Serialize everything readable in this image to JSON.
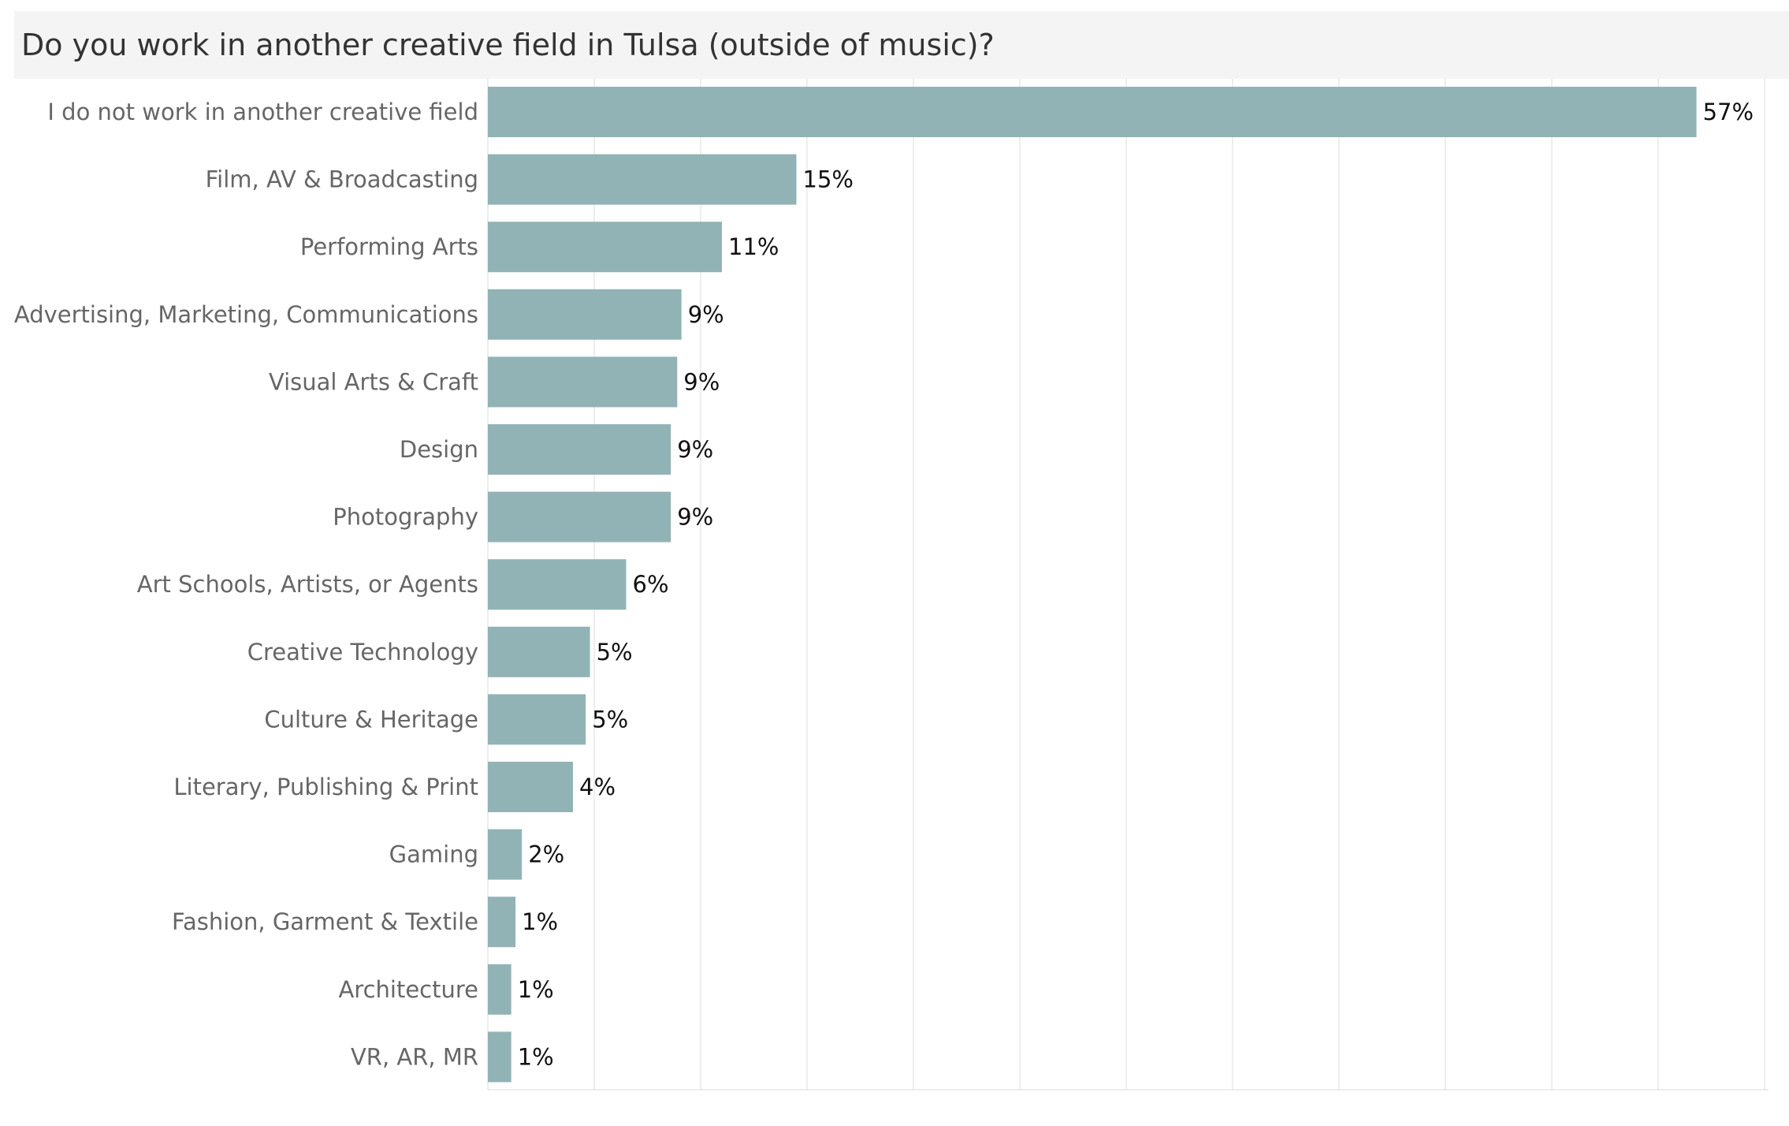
{
  "title": "Do you work in another creative field in Tulsa (outside of music)?",
  "colors": {
    "bar": "#92b3b6",
    "grid": "#e8e8e8",
    "title_bg": "#f4f4f4"
  },
  "chart_data": {
    "type": "bar",
    "orientation": "horizontal",
    "title": "Do you work in another creative field in Tulsa (outside of music)?",
    "xlabel": "",
    "ylabel": "",
    "xlim": [
      0,
      60
    ],
    "grid": true,
    "categories": [
      "I do not work in another creative field",
      "Film, AV & Broadcasting",
      "Performing Arts",
      "Advertising, Marketing, Communications",
      "Visual Arts & Craft",
      "Design",
      "Photography",
      "Art Schools, Artists, or Agents",
      "Creative Technology",
      "Culture & Heritage",
      "Literary, Publishing & Print",
      "Gaming",
      "Fashion, Garment & Textile",
      "Architecture",
      "VR, AR, MR"
    ],
    "values": [
      56.8,
      14.5,
      11.0,
      9.1,
      8.9,
      8.6,
      8.6,
      6.5,
      4.8,
      4.6,
      4.0,
      1.6,
      1.3,
      1.1,
      1.1
    ],
    "value_labels": [
      "57%",
      "15%",
      "11%",
      "9%",
      "9%",
      "9%",
      "9%",
      "6%",
      "5%",
      "5%",
      "4%",
      "2%",
      "1%",
      "1%",
      "1%"
    ]
  }
}
